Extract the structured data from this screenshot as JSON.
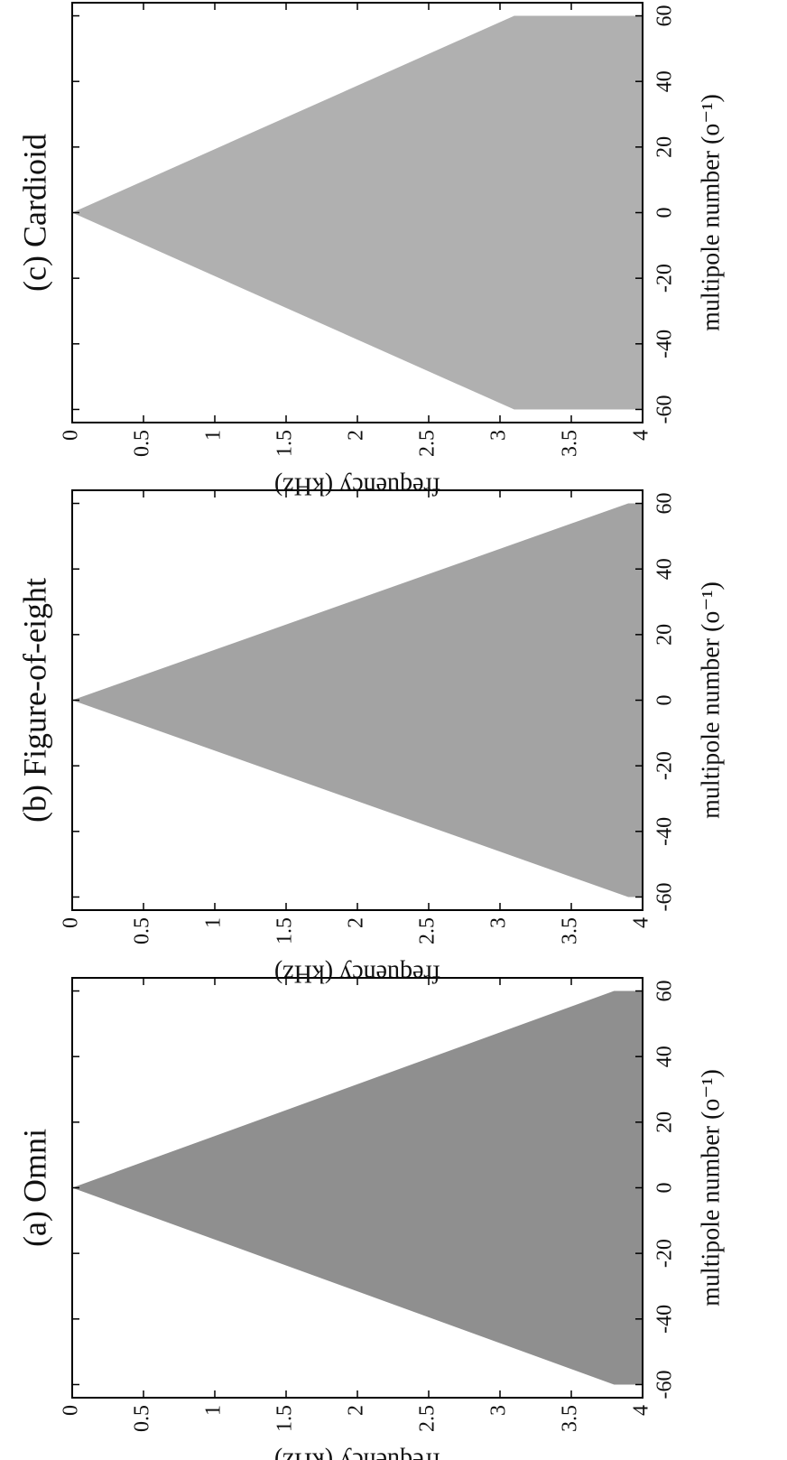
{
  "chart_data": [
    {
      "type": "area",
      "title": "(a) Omni",
      "xlabel": "multipole number (o⁻¹)",
      "ylabel": "frequency (kHz)",
      "x": [
        -60,
        0,
        60
      ],
      "values": [
        3.8,
        0,
        3.8
      ],
      "color": "#8f8f8f",
      "xlim": [
        -64,
        64
      ],
      "xticks": [
        -60,
        -40,
        -20,
        0,
        20,
        40,
        60
      ],
      "ylim": [
        0,
        4
      ],
      "yticks": [
        0,
        0.5,
        1,
        1.5,
        2,
        2.5,
        3,
        3.5,
        4
      ]
    },
    {
      "type": "area",
      "title": "(b) Figure-of-eight",
      "xlabel": "multipole number (o⁻¹)",
      "ylabel": "frequency (kHz)",
      "x": [
        -60,
        0,
        60
      ],
      "values": [
        3.9,
        0,
        3.9
      ],
      "color": "#a3a3a3",
      "xlim": [
        -64,
        64
      ],
      "xticks": [
        -60,
        -40,
        -20,
        0,
        20,
        40,
        60
      ],
      "ylim": [
        0,
        4
      ],
      "yticks": [
        0,
        0.5,
        1,
        1.5,
        2,
        2.5,
        3,
        3.5,
        4
      ]
    },
    {
      "type": "area",
      "title": "(c) Cardioid",
      "xlabel": "multipole number (o⁻¹)",
      "ylabel": "frequency (kHz)",
      "x": [
        -60,
        0,
        60
      ],
      "values": [
        3.1,
        0,
        3.1
      ],
      "color": "#b0b0b0",
      "xlim": [
        -64,
        64
      ],
      "xticks": [
        -60,
        -40,
        -20,
        0,
        20,
        40,
        60
      ],
      "ylim": [
        0,
        4
      ],
      "yticks": [
        0,
        0.5,
        1,
        1.5,
        2,
        2.5,
        3,
        3.5,
        4
      ]
    }
  ]
}
